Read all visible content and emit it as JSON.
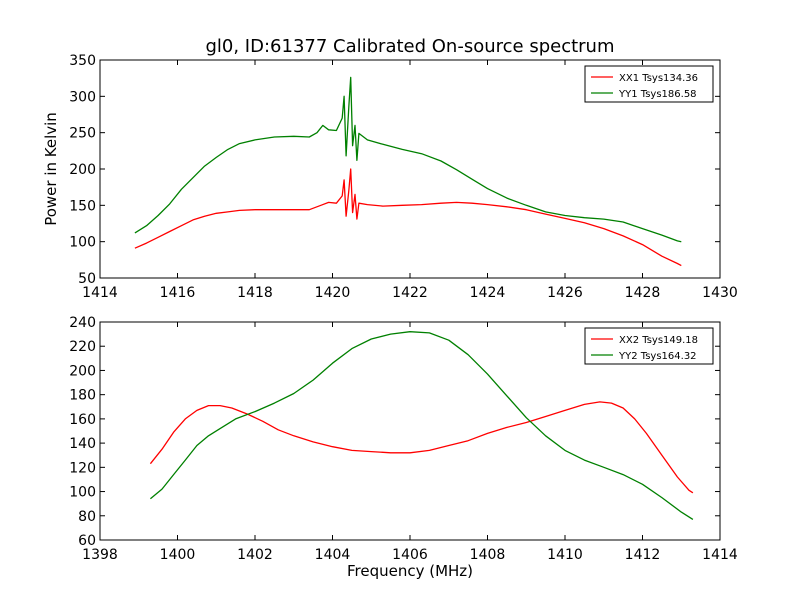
{
  "chart_data": [
    {
      "type": "line",
      "title": "gl0, ID:61377 Calibrated On-source spectrum",
      "xlabel": "",
      "ylabel": "Power in Kelvin",
      "xlim": [
        1414,
        1430
      ],
      "ylim": [
        50,
        350
      ],
      "xticks": [
        1414,
        1416,
        1418,
        1420,
        1422,
        1424,
        1426,
        1428,
        1430
      ],
      "yticks": [
        50,
        100,
        150,
        200,
        250,
        300,
        350
      ],
      "grid": false,
      "legend_position": "top-right",
      "series": [
        {
          "name": "XX1 Tsys134.36",
          "color": "#ff0000",
          "points": [
            [
              1414.9,
              91
            ],
            [
              1415.2,
              98
            ],
            [
              1415.5,
              106
            ],
            [
              1415.8,
              114
            ],
            [
              1416.1,
              122
            ],
            [
              1416.4,
              130
            ],
            [
              1416.7,
              135
            ],
            [
              1417.0,
              139
            ],
            [
              1417.3,
              141
            ],
            [
              1417.6,
              143
            ],
            [
              1418.0,
              144
            ],
            [
              1418.5,
              144
            ],
            [
              1419.0,
              144
            ],
            [
              1419.4,
              144
            ],
            [
              1419.7,
              150
            ],
            [
              1419.9,
              154
            ],
            [
              1420.1,
              153
            ],
            [
              1420.25,
              163
            ],
            [
              1420.3,
              185
            ],
            [
              1420.35,
              135
            ],
            [
              1420.42,
              170
            ],
            [
              1420.47,
              200
            ],
            [
              1420.52,
              140
            ],
            [
              1420.58,
              165
            ],
            [
              1420.63,
              131
            ],
            [
              1420.68,
              153
            ],
            [
              1420.9,
              151
            ],
            [
              1421.3,
              149
            ],
            [
              1421.8,
              150
            ],
            [
              1422.3,
              151
            ],
            [
              1422.8,
              153
            ],
            [
              1423.2,
              154
            ],
            [
              1423.6,
              153
            ],
            [
              1424.0,
              151
            ],
            [
              1424.5,
              148
            ],
            [
              1425.0,
              144
            ],
            [
              1425.5,
              138
            ],
            [
              1426.0,
              132
            ],
            [
              1426.5,
              126
            ],
            [
              1427.0,
              118
            ],
            [
              1427.5,
              108
            ],
            [
              1428.0,
              96
            ],
            [
              1428.5,
              80
            ],
            [
              1428.9,
              70
            ],
            [
              1429.0,
              67
            ]
          ]
        },
        {
          "name": "YY1 Tsys186.58",
          "color": "#008000",
          "points": [
            [
              1414.9,
              112
            ],
            [
              1415.2,
              122
            ],
            [
              1415.5,
              136
            ],
            [
              1415.8,
              152
            ],
            [
              1416.1,
              172
            ],
            [
              1416.4,
              188
            ],
            [
              1416.7,
              204
            ],
            [
              1417.0,
              216
            ],
            [
              1417.3,
              227
            ],
            [
              1417.6,
              235
            ],
            [
              1418.0,
              240
            ],
            [
              1418.5,
              244
            ],
            [
              1419.0,
              245
            ],
            [
              1419.4,
              244
            ],
            [
              1419.6,
              250
            ],
            [
              1419.75,
              260
            ],
            [
              1419.9,
              254
            ],
            [
              1420.1,
              253
            ],
            [
              1420.25,
              270
            ],
            [
              1420.3,
              300
            ],
            [
              1420.35,
              218
            ],
            [
              1420.42,
              285
            ],
            [
              1420.47,
              326
            ],
            [
              1420.52,
              232
            ],
            [
              1420.58,
              260
            ],
            [
              1420.63,
              212
            ],
            [
              1420.68,
              249
            ],
            [
              1420.9,
              240
            ],
            [
              1421.3,
              234
            ],
            [
              1421.8,
              227
            ],
            [
              1422.3,
              221
            ],
            [
              1422.8,
              211
            ],
            [
              1423.2,
              199
            ],
            [
              1423.6,
              186
            ],
            [
              1424.0,
              173
            ],
            [
              1424.5,
              160
            ],
            [
              1425.0,
              150
            ],
            [
              1425.5,
              141
            ],
            [
              1426.0,
              136
            ],
            [
              1426.5,
              133
            ],
            [
              1427.0,
              131
            ],
            [
              1427.5,
              127
            ],
            [
              1428.0,
              118
            ],
            [
              1428.5,
              109
            ],
            [
              1428.9,
              101
            ],
            [
              1429.0,
              100
            ]
          ]
        }
      ]
    },
    {
      "type": "line",
      "title": "",
      "xlabel": "Frequency (MHz)",
      "ylabel": "",
      "xlim": [
        1398,
        1414
      ],
      "ylim": [
        60,
        240
      ],
      "xticks": [
        1398,
        1400,
        1402,
        1404,
        1406,
        1408,
        1410,
        1412,
        1414
      ],
      "yticks": [
        60,
        80,
        100,
        120,
        140,
        160,
        180,
        200,
        220,
        240
      ],
      "grid": false,
      "legend_position": "top-right",
      "series": [
        {
          "name": "XX2 Tsys149.18",
          "color": "#ff0000",
          "points": [
            [
              1399.3,
              123
            ],
            [
              1399.6,
              135
            ],
            [
              1399.9,
              149
            ],
            [
              1400.2,
              160
            ],
            [
              1400.5,
              167
            ],
            [
              1400.8,
              171
            ],
            [
              1401.1,
              171
            ],
            [
              1401.4,
              169
            ],
            [
              1401.8,
              164
            ],
            [
              1402.2,
              158
            ],
            [
              1402.6,
              151
            ],
            [
              1403.0,
              146
            ],
            [
              1403.5,
              141
            ],
            [
              1404.0,
              137
            ],
            [
              1404.5,
              134
            ],
            [
              1405.0,
              133
            ],
            [
              1405.5,
              132
            ],
            [
              1406.0,
              132
            ],
            [
              1406.5,
              134
            ],
            [
              1407.0,
              138
            ],
            [
              1407.5,
              142
            ],
            [
              1408.0,
              148
            ],
            [
              1408.5,
              153
            ],
            [
              1409.0,
              157
            ],
            [
              1409.5,
              162
            ],
            [
              1410.0,
              167
            ],
            [
              1410.5,
              172
            ],
            [
              1410.9,
              174
            ],
            [
              1411.2,
              173
            ],
            [
              1411.5,
              169
            ],
            [
              1411.8,
              160
            ],
            [
              1412.1,
              148
            ],
            [
              1412.5,
              130
            ],
            [
              1412.9,
              112
            ],
            [
              1413.2,
              101
            ],
            [
              1413.3,
              99
            ]
          ]
        },
        {
          "name": "YY2 Tsys164.32",
          "color": "#008000",
          "points": [
            [
              1399.3,
              94
            ],
            [
              1399.6,
              102
            ],
            [
              1399.9,
              114
            ],
            [
              1400.2,
              126
            ],
            [
              1400.5,
              138
            ],
            [
              1400.8,
              146
            ],
            [
              1401.1,
              152
            ],
            [
              1401.5,
              160
            ],
            [
              1402.0,
              166
            ],
            [
              1402.5,
              173
            ],
            [
              1403.0,
              181
            ],
            [
              1403.5,
              192
            ],
            [
              1404.0,
              206
            ],
            [
              1404.5,
              218
            ],
            [
              1405.0,
              226
            ],
            [
              1405.5,
              230
            ],
            [
              1406.0,
              232
            ],
            [
              1406.5,
              231
            ],
            [
              1407.0,
              225
            ],
            [
              1407.5,
              213
            ],
            [
              1408.0,
              197
            ],
            [
              1408.5,
              179
            ],
            [
              1409.0,
              161
            ],
            [
              1409.5,
              146
            ],
            [
              1410.0,
              134
            ],
            [
              1410.5,
              126
            ],
            [
              1411.0,
              120
            ],
            [
              1411.5,
              114
            ],
            [
              1412.0,
              106
            ],
            [
              1412.5,
              95
            ],
            [
              1413.0,
              83
            ],
            [
              1413.3,
              77
            ]
          ]
        }
      ]
    }
  ]
}
